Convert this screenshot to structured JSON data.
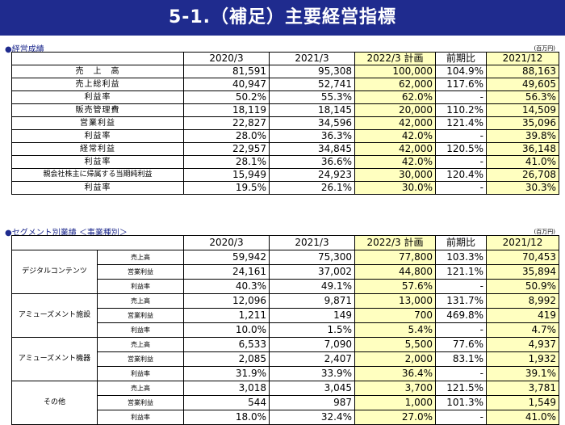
{
  "title": "5-1.（補足）主要経営指標",
  "section1": {
    "label": "●経営成績",
    "unit": "(百万円)",
    "headers": [
      "",
      "2020/3",
      "2021/3",
      "2022/3 計画",
      "前期比",
      "2021/12"
    ],
    "rows": [
      {
        "label": "売　上　高",
        "values": [
          "81,591",
          "95,308",
          "100,000",
          "104.9%",
          "88,163"
        ]
      },
      {
        "label": "売上総利益",
        "values": [
          "40,947",
          "52,741",
          "62,000",
          "117.6%",
          "49,605"
        ]
      },
      {
        "label": "利益率",
        "values": [
          "50.2%",
          "55.3%",
          "62.0%",
          "-",
          "56.3%"
        ]
      },
      {
        "label": "販売管理費",
        "values": [
          "18,119",
          "18,145",
          "20,000",
          "110.2%",
          "14,509"
        ]
      },
      {
        "label": "営業利益",
        "values": [
          "22,827",
          "34,596",
          "42,000",
          "121.4%",
          "35,096"
        ]
      },
      {
        "label": "利益率",
        "values": [
          "28.0%",
          "36.3%",
          "42.0%",
          "-",
          "39.8%"
        ]
      },
      {
        "label": "経常利益",
        "values": [
          "22,957",
          "34,845",
          "42,000",
          "120.5%",
          "36,148"
        ]
      },
      {
        "label": "利益率",
        "values": [
          "28.1%",
          "36.6%",
          "42.0%",
          "-",
          "41.0%"
        ]
      },
      {
        "label": "親会社株主に帰属する当期純利益",
        "values": [
          "15,949",
          "24,923",
          "30,000",
          "120.4%",
          "26,708"
        ]
      },
      {
        "label": "利益率",
        "values": [
          "19.5%",
          "26.1%",
          "30.0%",
          "-",
          "30.3%"
        ]
      }
    ]
  },
  "section2": {
    "label": "●セグメント別業績 ＜事業種別＞",
    "unit": "(百万円)",
    "headers": [
      "",
      "2020/3",
      "2021/3",
      "2022/3 計画",
      "前期比",
      "2021/12"
    ],
    "segments": [
      {
        "name": "デジタルコンテンツ",
        "rows": [
          {
            "metric": "売上高",
            "values": [
              "59,942",
              "75,300",
              "77,800",
              "103.3%",
              "70,453"
            ]
          },
          {
            "metric": "営業利益",
            "values": [
              "24,161",
              "37,002",
              "44,800",
              "121.1%",
              "35,894"
            ]
          },
          {
            "metric": "利益率",
            "values": [
              "40.3%",
              "49.1%",
              "57.6%",
              "-",
              "50.9%"
            ]
          }
        ]
      },
      {
        "name": "アミューズメント施設",
        "rows": [
          {
            "metric": "売上高",
            "values": [
              "12,096",
              "9,871",
              "13,000",
              "131.7%",
              "8,992"
            ]
          },
          {
            "metric": "営業利益",
            "values": [
              "1,211",
              "149",
              "700",
              "469.8%",
              "419"
            ]
          },
          {
            "metric": "利益率",
            "values": [
              "10.0%",
              "1.5%",
              "5.4%",
              "-",
              "4.7%"
            ]
          }
        ]
      },
      {
        "name": "アミューズメント機器",
        "rows": [
          {
            "metric": "売上高",
            "values": [
              "6,533",
              "7,090",
              "5,500",
              "77.6%",
              "4,937"
            ]
          },
          {
            "metric": "営業利益",
            "values": [
              "2,085",
              "2,407",
              "2,000",
              "83.1%",
              "1,932"
            ]
          },
          {
            "metric": "利益率",
            "values": [
              "31.9%",
              "33.9%",
              "36.4%",
              "-",
              "39.1%"
            ]
          }
        ]
      },
      {
        "name": "その他",
        "rows": [
          {
            "metric": "売上高",
            "values": [
              "3,018",
              "3,045",
              "3,700",
              "121.5%",
              "3,781"
            ]
          },
          {
            "metric": "営業利益",
            "values": [
              "544",
              "987",
              "1,000",
              "101.3%",
              "1,549"
            ]
          },
          {
            "metric": "利益率",
            "values": [
              "18.0%",
              "32.4%",
              "27.0%",
              "-",
              "41.0%"
            ]
          }
        ]
      }
    ]
  },
  "colors": {
    "title_bg": "#1f2b8e",
    "highlight": "#ffffc0"
  }
}
